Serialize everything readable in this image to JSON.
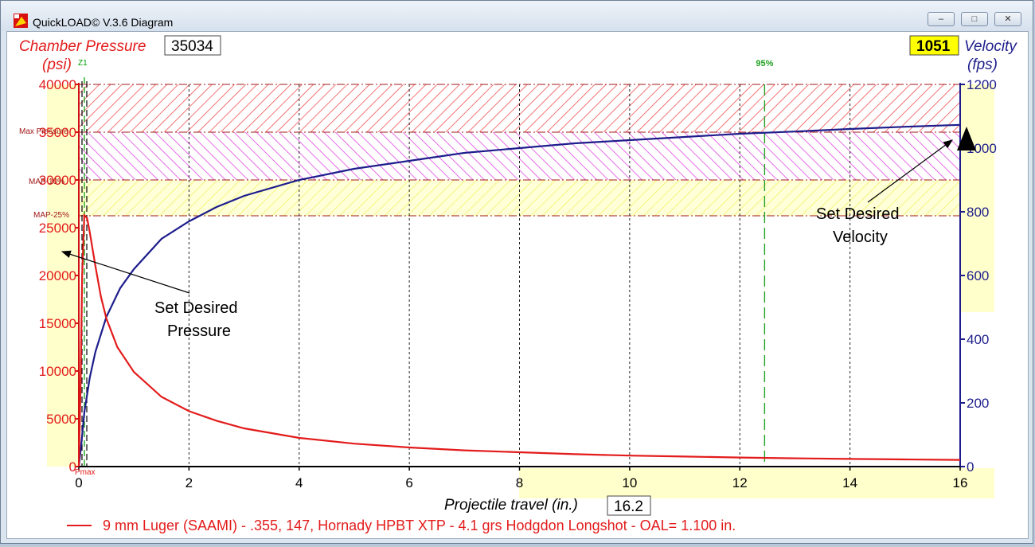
{
  "window": {
    "title": "QuickLOAD© V.3.6 Diagram",
    "controls": [
      "–",
      "□",
      "✕"
    ]
  },
  "left_axis": {
    "title": "Chamber Pressure",
    "unit": "(psi)",
    "readout": "35034"
  },
  "right_axis": {
    "title": "Velocity",
    "unit": "(fps)",
    "readout": "1051",
    "readout_bg": "#ffff00"
  },
  "x_axis": {
    "title": "Projectile travel (in.)",
    "readout": "16.2"
  },
  "legend": {
    "text": "9 mm Luger (SAAMI) - .355, 147, Hornady HPBT XTP - 4.1 grs Hodgdon Longshot - OAL= 1.100 in.",
    "color": "#e31b1b"
  },
  "markers": {
    "z1": "Z1",
    "pmax": "Pmax",
    "pct95": "95%",
    "pct95_at_in": 12.45,
    "map": "Max Pressure",
    "map_red": "MAP-10%",
    "map_25": "MAP-25%"
  },
  "annotations": {
    "pressure": [
      "Set Desired",
      "Pressure"
    ],
    "velocity": [
      "Set Desired",
      "Velocity"
    ]
  },
  "colors": {
    "pressure": "#e31b1b",
    "velocity": "#1d1d8c",
    "zone_red": "#ff5a5a",
    "zone_magenta": "#e040e0",
    "zone_yellow": "#ffff66",
    "band": "#ffffcc"
  },
  "chart_data": {
    "type": "line",
    "x_label": "Projectile travel (in.)",
    "xlim": [
      0,
      16
    ],
    "x_ticks": [
      0,
      2,
      4,
      6,
      8,
      10,
      12,
      14,
      16
    ],
    "y_left": {
      "label": "Chamber Pressure (psi)",
      "lim": [
        0,
        40000
      ],
      "ticks": [
        0,
        5000,
        10000,
        15000,
        20000,
        25000,
        30000,
        35000,
        40000
      ]
    },
    "y_right": {
      "label": "Velocity (fps)",
      "lim": [
        0,
        1200
      ],
      "ticks": [
        0,
        200,
        400,
        600,
        800,
        1000,
        1200
      ]
    },
    "zones_psi": [
      [
        35000,
        40000
      ],
      [
        30000,
        35000
      ],
      [
        26250,
        30000
      ]
    ],
    "series": [
      {
        "name": "Chamber Pressure",
        "axis": "left",
        "x": [
          0,
          0.03,
          0.06,
          0.1,
          0.15,
          0.2,
          0.3,
          0.4,
          0.5,
          0.7,
          1,
          1.5,
          2,
          2.5,
          3,
          4,
          5,
          6,
          7,
          8,
          9,
          10,
          11,
          12,
          13,
          14,
          15,
          16
        ],
        "y": [
          0,
          8000,
          20000,
          26300,
          26000,
          24500,
          21000,
          17800,
          15500,
          12500,
          9900,
          7300,
          5800,
          4800,
          4000,
          3000,
          2400,
          2000,
          1700,
          1500,
          1300,
          1150,
          1050,
          950,
          870,
          800,
          750,
          700
        ]
      },
      {
        "name": "Velocity",
        "axis": "right",
        "x": [
          0,
          0.05,
          0.1,
          0.2,
          0.3,
          0.5,
          0.75,
          1,
          1.5,
          2,
          2.5,
          3,
          4,
          5,
          6,
          7,
          8,
          9,
          10,
          11,
          12,
          13,
          14,
          15,
          16
        ],
        "y": [
          0,
          80,
          170,
          280,
          360,
          470,
          560,
          620,
          715,
          770,
          815,
          850,
          900,
          935,
          960,
          985,
          1000,
          1015,
          1025,
          1035,
          1045,
          1052,
          1060,
          1067,
          1073
        ]
      }
    ]
  }
}
